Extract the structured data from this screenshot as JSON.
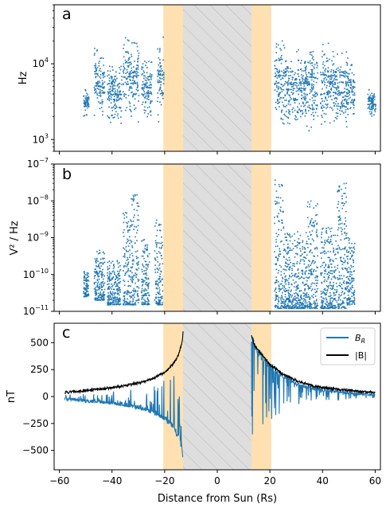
{
  "chart_data": [
    {
      "panel_letter": "a",
      "type": "scatter",
      "ylabel": "Hz",
      "yscale": "log",
      "ylim": [
        700,
        60000
      ],
      "xlim": [
        -62,
        62
      ],
      "yticks": [
        1000,
        10000
      ],
      "ytick_labels": [
        [
          "10",
          "3"
        ],
        [
          "10",
          "4"
        ]
      ],
      "series_color": "#1f77b4",
      "clusters": [
        {
          "x": [
            -51,
            -49
          ],
          "y": [
            1800,
            5500
          ]
        },
        {
          "x": [
            -47,
            -43
          ],
          "y": [
            1500,
            20000
          ]
        },
        {
          "x": [
            -42,
            -36.5
          ],
          "y": [
            1400,
            12000
          ]
        },
        {
          "x": [
            -36,
            -33
          ],
          "y": [
            1500,
            30000
          ]
        },
        {
          "x": [
            -33,
            -30
          ],
          "y": [
            1500,
            30000
          ]
        },
        {
          "x": [
            -29,
            -25
          ],
          "y": [
            1400,
            15000
          ]
        },
        {
          "x": [
            -23,
            -20.5
          ],
          "y": [
            1400,
            30000
          ]
        },
        {
          "x": [
            21.5,
            26
          ],
          "y": [
            1200,
            30000
          ]
        },
        {
          "x": [
            26,
            34
          ],
          "y": [
            1200,
            18000
          ]
        },
        {
          "x": [
            34,
            38
          ],
          "y": [
            1200,
            22000
          ]
        },
        {
          "x": [
            39,
            45
          ],
          "y": [
            1200,
            22000
          ]
        },
        {
          "x": [
            45,
            49
          ],
          "y": [
            1200,
            20000
          ]
        },
        {
          "x": [
            49,
            51
          ],
          "y": [
            1500,
            16000
          ]
        },
        {
          "x": [
            51,
            52
          ],
          "y": [
            1500,
            12000
          ]
        },
        {
          "x": [
            57,
            60
          ],
          "y": [
            1800,
            5000
          ]
        }
      ]
    },
    {
      "panel_letter": "b",
      "type": "scatter",
      "ylabel": "V² / Hz",
      "yscale": "log",
      "ylim": [
        1e-11,
        1e-07
      ],
      "xlim": [
        -62,
        62
      ],
      "yticks": [
        1e-11,
        1e-10,
        1e-09,
        1e-08,
        1e-07
      ],
      "ytick_labels": [
        [
          "10",
          "−11"
        ],
        [
          "10",
          "−10"
        ],
        [
          "10",
          "−9"
        ],
        [
          "10",
          "−8"
        ],
        [
          "10",
          "−7"
        ]
      ],
      "series_color": "#1f77b4",
      "clusters": [
        {
          "x": [
            -51,
            -49
          ],
          "y": [
            2.5e-11,
            1.2e-10
          ]
        },
        {
          "x": [
            -47,
            -43
          ],
          "y": [
            2e-11,
            5e-10
          ]
        },
        {
          "x": [
            -42,
            -37
          ],
          "y": [
            1.5e-11,
            2.5e-10
          ]
        },
        {
          "x": [
            -36,
            -33
          ],
          "y": [
            1.5e-11,
            5e-09
          ]
        },
        {
          "x": [
            -33,
            -30
          ],
          "y": [
            1.5e-11,
            1.5e-08
          ]
        },
        {
          "x": [
            -29,
            -26
          ],
          "y": [
            1.5e-11,
            1e-09
          ]
        },
        {
          "x": [
            -24,
            -21
          ],
          "y": [
            1.5e-11,
            3e-09
          ]
        },
        {
          "x": [
            21.5,
            25
          ],
          "y": [
            1.2e-11,
            4e-08
          ]
        },
        {
          "x": [
            25,
            34
          ],
          "y": [
            1.2e-11,
            1.5e-09
          ]
        },
        {
          "x": [
            34,
            38
          ],
          "y": [
            1.2e-11,
            1e-08
          ]
        },
        {
          "x": [
            39,
            45
          ],
          "y": [
            1.2e-11,
            2e-09
          ]
        },
        {
          "x": [
            45,
            49
          ],
          "y": [
            1.2e-11,
            3e-08
          ]
        },
        {
          "x": [
            49,
            52
          ],
          "y": [
            1.5e-11,
            1e-09
          ]
        }
      ]
    },
    {
      "panel_letter": "c",
      "type": "line",
      "ylabel": "nT",
      "xlabel": "Distance from Sun (Rs)",
      "xlim": [
        -62,
        62
      ],
      "ylim": [
        -680,
        680
      ],
      "xticks": [
        -60,
        -40,
        -20,
        0,
        20,
        40,
        60
      ],
      "xtick_labels": [
        "−60",
        "−40",
        "−20",
        "0",
        "20",
        "40",
        "60"
      ],
      "yticks": [
        -500,
        -250,
        0,
        250,
        500
      ],
      "ytick_labels": [
        "−500",
        "−250",
        "0",
        "250",
        "500"
      ],
      "legend_location": "top-right",
      "series": [
        {
          "name": "B",
          "name_sub": "R",
          "color": "#1f77b4"
        },
        {
          "name": "|B|",
          "color": "#000000"
        }
      ],
      "envelope_B": [
        [
          -58,
          40
        ],
        [
          -50,
          60
        ],
        [
          -40,
          85
        ],
        [
          -30,
          130
        ],
        [
          -25,
          165
        ],
        [
          -20,
          230
        ],
        [
          -17,
          300
        ],
        [
          -15,
          380
        ],
        [
          -14,
          450
        ],
        [
          -13.2,
          530
        ],
        [
          -12.9,
          640
        ],
        [
          12.9,
          570
        ],
        [
          14,
          490
        ],
        [
          16,
          420
        ],
        [
          18,
          360
        ],
        [
          20,
          300
        ],
        [
          25,
          210
        ],
        [
          30,
          150
        ],
        [
          35,
          110
        ],
        [
          40,
          85
        ],
        [
          45,
          75
        ],
        [
          50,
          60
        ],
        [
          55,
          50
        ],
        [
          60,
          40
        ]
      ],
      "envelope_BR": [
        [
          -58,
          -20
        ],
        [
          -50,
          -40
        ],
        [
          -40,
          -60
        ],
        [
          -30,
          -100
        ],
        [
          -25,
          -140
        ],
        [
          -20,
          -200
        ],
        [
          -17,
          -280
        ],
        [
          -15,
          -360
        ],
        [
          -13.5,
          -450
        ],
        [
          -12.9,
          -600
        ],
        [
          12.9,
          550
        ],
        [
          14,
          480
        ],
        [
          16,
          400
        ],
        [
          18,
          340
        ],
        [
          20,
          280
        ],
        [
          25,
          190
        ],
        [
          30,
          120
        ],
        [
          35,
          80
        ],
        [
          40,
          60
        ],
        [
          45,
          50
        ],
        [
          50,
          35
        ],
        [
          55,
          25
        ],
        [
          60,
          20
        ]
      ]
    }
  ],
  "shading": {
    "orange_bands": [
      [
        -20.5,
        -13
      ],
      [
        13,
        20.5
      ]
    ],
    "gray_hatched": [
      -13,
      13
    ],
    "orange_color": "#ffe0b0",
    "gray_color": "#dedede"
  }
}
